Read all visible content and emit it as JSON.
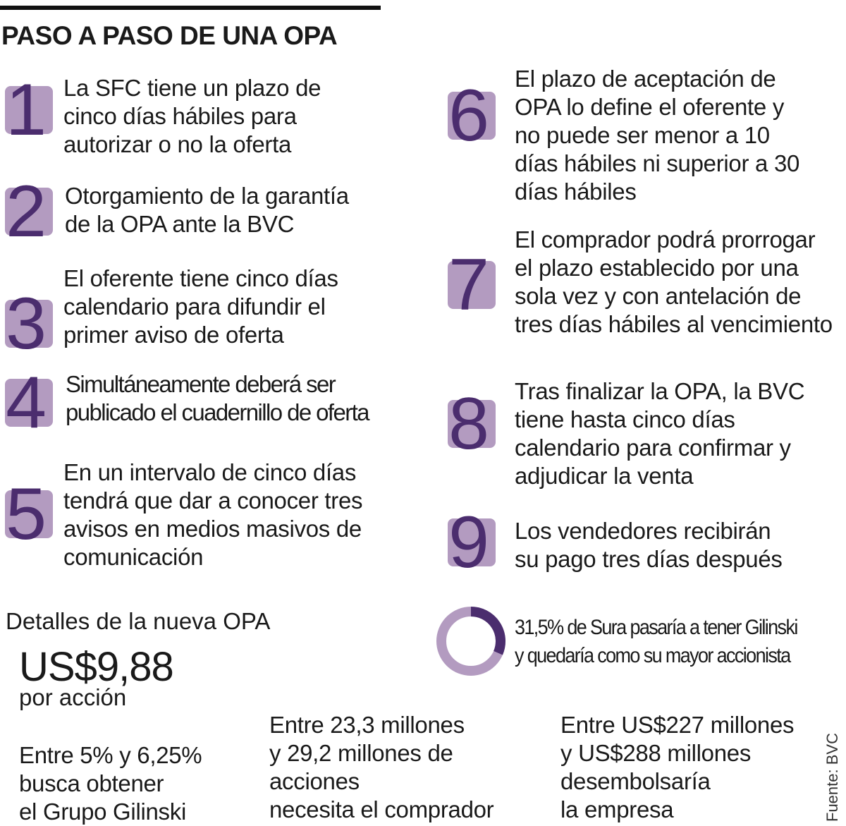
{
  "title": "PASO A PASO DE UNA OPA",
  "colors": {
    "box": "#b39bc0",
    "digit": "#4b2d6e",
    "donut_light": "#b39bc0",
    "donut_dark": "#4b2d6e"
  },
  "steps": [
    {
      "number": "1",
      "lines": [
        "La SFC tiene un plazo de",
        "cinco días hábiles para",
        "autorizar o no la oferta"
      ]
    },
    {
      "number": "2",
      "lines": [
        "Otorgamiento de la garantía",
        "de la OPA ante la BVC"
      ]
    },
    {
      "number": "3",
      "lines": [
        "El oferente tiene cinco días",
        "calendario para difundir el",
        "primer aviso de oferta"
      ]
    },
    {
      "number": "4",
      "lines": [
        "Simultáneamente deberá ser",
        "publicado el cuadernillo de oferta"
      ]
    },
    {
      "number": "5",
      "lines": [
        "En un intervalo de cinco días",
        "tendrá que dar a conocer tres",
        "avisos en medios masivos de",
        "comunicación"
      ]
    },
    {
      "number": "6",
      "lines": [
        "El plazo de aceptación de",
        "OPA lo define el oferente y",
        "no puede ser menor a 10",
        "días hábiles ni superior a 30",
        "días hábiles"
      ]
    },
    {
      "number": "7",
      "lines": [
        "El comprador podrá prorrogar",
        "el plazo establecido por una",
        "sola vez y con antelación de",
        "tres días hábiles al vencimiento"
      ]
    },
    {
      "number": "8",
      "lines": [
        "Tras finalizar la OPA, la BVC",
        "tiene hasta cinco días",
        "calendario para confirmar y",
        "adjudicar la venta"
      ]
    },
    {
      "number": "9",
      "lines": [
        "Los vendedores recibirán",
        "su pago tres días después"
      ]
    }
  ],
  "details": {
    "title": "Detalles de la nueva OPA",
    "price": "US$9,88",
    "price_sub": "por acción",
    "donut": {
      "percent": 31.5,
      "lines": [
        "31,5% de Sura pasaría a tener Gilinski",
        "y quedaría como su mayor accionista"
      ]
    },
    "columns": [
      {
        "strong": [
          "Entre 5% y 6,25%"
        ],
        "light": [
          "busca obtener",
          "el Grupo Gilinski"
        ]
      },
      {
        "strong": [
          "Entre 23,3 millones",
          "y 29,2 millones de",
          "acciones"
        ],
        "light": [
          "necesita el comprador"
        ]
      },
      {
        "strong": [
          "Entre US$227 millones",
          "y US$288 millones"
        ],
        "light": [
          "desembolsaría",
          "la empresa"
        ]
      }
    ]
  },
  "source": "Fuente: BVC"
}
